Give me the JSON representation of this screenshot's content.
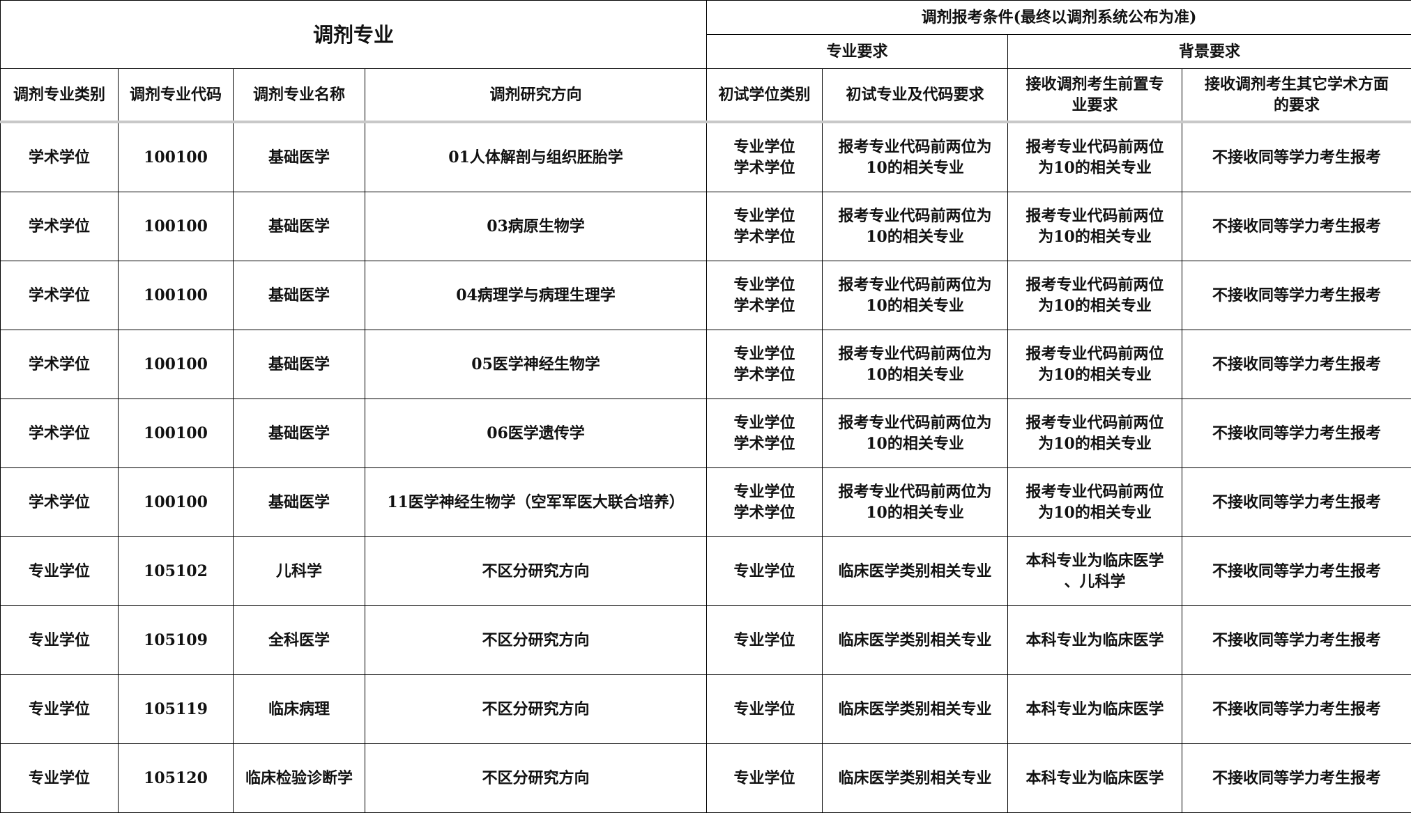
{
  "header": {
    "group_left": "调剂专业",
    "group_right": "调剂报考条件(最终以调剂系统公布为准)",
    "sub_major": "专业要求",
    "sub_background": "背景要求",
    "columns": [
      "调剂专业类别",
      "调剂专业代码",
      "调剂专业名称",
      "调剂研究方向",
      "初试学位类别",
      "初试专业及代码要求",
      "接收调剂考生前置专\n业要求",
      "接收调剂考生其它学术方面\n的要求"
    ]
  },
  "rows": [
    [
      "学术学位",
      "100100",
      "基础医学",
      "01人体解剖与组织胚胎学",
      "专业学位\n学术学位",
      "报考专业代码前两位为\n10的相关专业",
      "报考专业代码前两位\n为10的相关专业",
      "不接收同等学力考生报考"
    ],
    [
      "学术学位",
      "100100",
      "基础医学",
      "03病原生物学",
      "专业学位\n学术学位",
      "报考专业代码前两位为\n10的相关专业",
      "报考专业代码前两位\n为10的相关专业",
      "不接收同等学力考生报考"
    ],
    [
      "学术学位",
      "100100",
      "基础医学",
      "04病理学与病理生理学",
      "专业学位\n学术学位",
      "报考专业代码前两位为\n10的相关专业",
      "报考专业代码前两位\n为10的相关专业",
      "不接收同等学力考生报考"
    ],
    [
      "学术学位",
      "100100",
      "基础医学",
      "05医学神经生物学",
      "专业学位\n学术学位",
      "报考专业代码前两位为\n10的相关专业",
      "报考专业代码前两位\n为10的相关专业",
      "不接收同等学力考生报考"
    ],
    [
      "学术学位",
      "100100",
      "基础医学",
      "06医学遗传学",
      "专业学位\n学术学位",
      "报考专业代码前两位为\n10的相关专业",
      "报考专业代码前两位\n为10的相关专业",
      "不接收同等学力考生报考"
    ],
    [
      "学术学位",
      "100100",
      "基础医学",
      "11医学神经生物学（空军军医大联合培养）",
      "专业学位\n学术学位",
      "报考专业代码前两位为\n10的相关专业",
      "报考专业代码前两位\n为10的相关专业",
      "不接收同等学力考生报考"
    ],
    [
      "专业学位",
      "105102",
      "儿科学",
      "不区分研究方向",
      "专业学位",
      "临床医学类别相关专业",
      "本科专业为临床医学\n、儿科学",
      "不接收同等学力考生报考"
    ],
    [
      "专业学位",
      "105109",
      "全科医学",
      "不区分研究方向",
      "专业学位",
      "临床医学类别相关专业",
      "本科专业为临床医学",
      "不接收同等学力考生报考"
    ],
    [
      "专业学位",
      "105119",
      "临床病理",
      "不区分研究方向",
      "专业学位",
      "临床医学类别相关专业",
      "本科专业为临床医学",
      "不接收同等学力考生报考"
    ],
    [
      "专业学位",
      "105120",
      "临床检验诊断学",
      "不区分研究方向",
      "专业学位",
      "临床医学类别相关专业",
      "本科专业为临床医学",
      "不接收同等学力考生报考"
    ]
  ]
}
